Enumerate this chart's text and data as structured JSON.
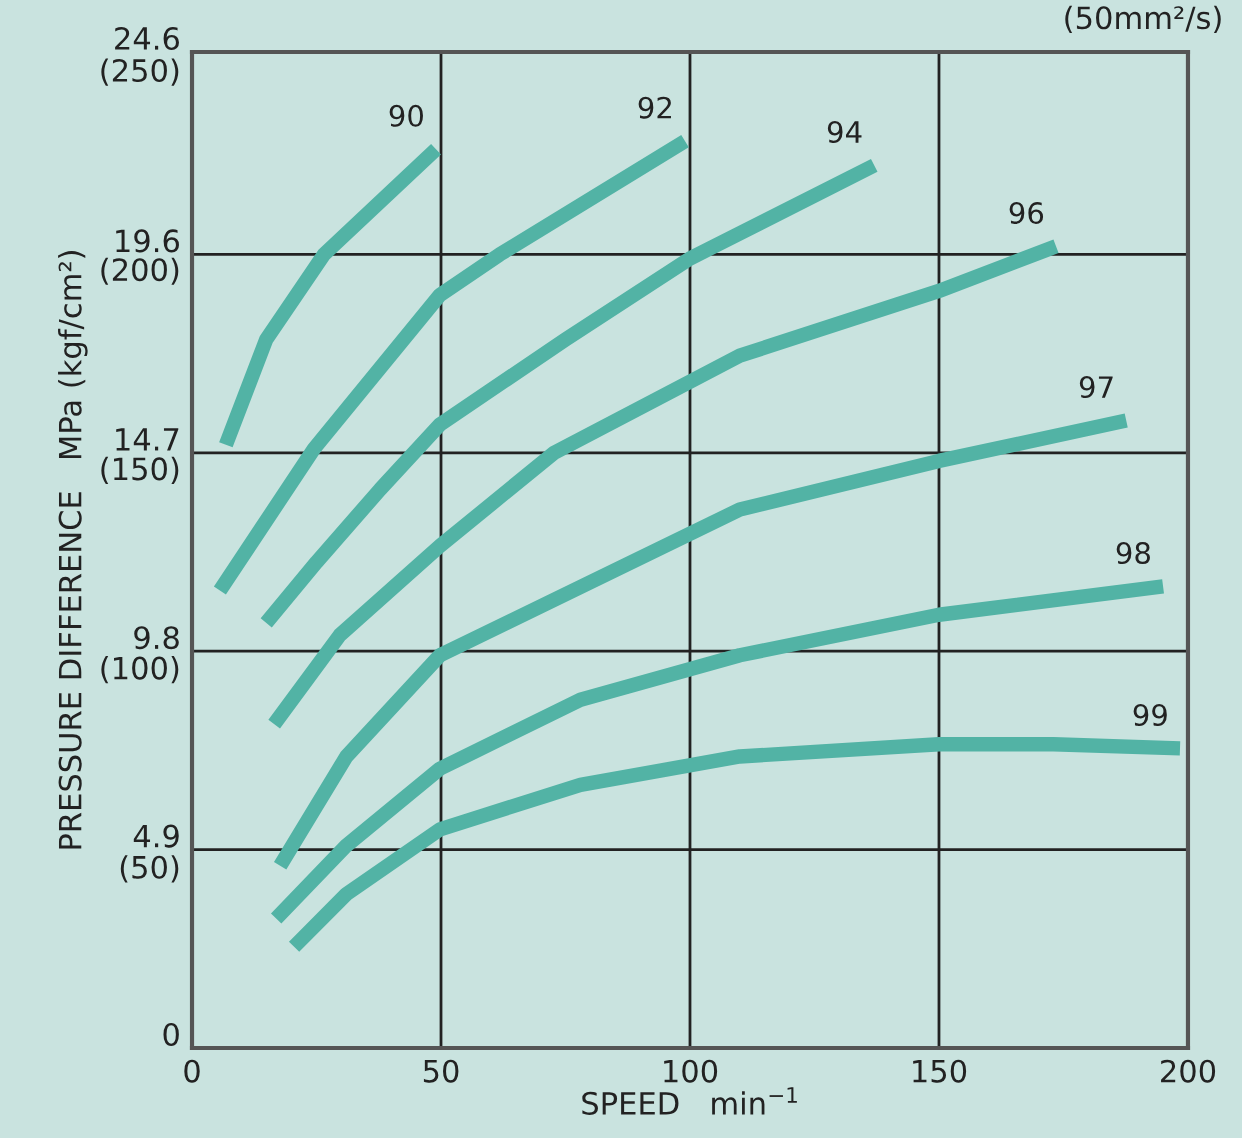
{
  "chart_data": {
    "type": "line",
    "xlabel": "SPEED   min$^{−1}$",
    "y2label": "PRESSURE DIFFERENCE   MPa (kgf/cm²)",
    "annotations": [
      "(50mm²/s)"
    ],
    "xlim": [
      0,
      200
    ],
    "xticks": [
      0,
      50,
      100,
      150,
      200
    ],
    "ylim": [
      0,
      24.6
    ],
    "yticks": [
      0,
      4.9,
      9.8,
      14.7,
      19.6,
      24.6
    ],
    "y2lim": [
      0,
      250
    ],
    "y2ticks": [
      {
        "value": 50,
        "label": "(50)"
      },
      {
        "value": 100,
        "label": "(100)"
      },
      {
        "value": 150,
        "label": "(150)"
      },
      {
        "value": 200,
        "label": "(200)"
      },
      {
        "value": 250,
        "label": "(250)"
      }
    ],
    "grid": true,
    "legend": false,
    "marker": "none",
    "line_style": "solid",
    "series": [
      {
        "name": "90",
        "color": "#52b3a5",
        "x": [
          6.8,
          14.9,
          26.5,
          49
        ],
        "values": [
          14.9,
          17.5,
          19.6,
          22.2
        ]
      },
      {
        "name": "92",
        "color": "#52b3a5",
        "x": [
          5.6,
          24.5,
          49.8,
          61.8,
          99
        ],
        "values": [
          11.3,
          14.8,
          18.6,
          19.6,
          22.4
        ]
      },
      {
        "name": "94",
        "color": "#52b3a5",
        "x": [
          14.9,
          25,
          37.8,
          49.8,
          75,
          100,
          137
        ],
        "values": [
          10.5,
          12.0,
          13.8,
          15.4,
          17.5,
          19.5,
          21.8
        ]
      },
      {
        "name": "96",
        "color": "#52b3a5",
        "x": [
          16.5,
          29.7,
          49.8,
          72.7,
          110,
          150,
          173.5
        ],
        "values": [
          8.0,
          10.2,
          12.4,
          14.7,
          17.1,
          18.7,
          19.8
        ]
      },
      {
        "name": "97",
        "color": "#52b3a5",
        "x": [
          17.7,
          31,
          49.8,
          110,
          150,
          187.6
        ],
        "values": [
          4.5,
          7.2,
          9.7,
          13.3,
          14.5,
          15.5
        ]
      },
      {
        "name": "98",
        "color": "#52b3a5",
        "x": [
          16.9,
          31,
          49.8,
          78,
          110,
          150,
          195
        ],
        "values": [
          3.2,
          5.0,
          6.9,
          8.6,
          9.7,
          10.7,
          11.4
        ]
      },
      {
        "name": "99",
        "color": "#52b3a5",
        "x": [
          20.5,
          31,
          49.8,
          78,
          110,
          150,
          173,
          198.4
        ],
        "values": [
          2.5,
          3.8,
          5.4,
          6.5,
          7.2,
          7.5,
          7.5,
          7.4
        ]
      }
    ]
  }
}
